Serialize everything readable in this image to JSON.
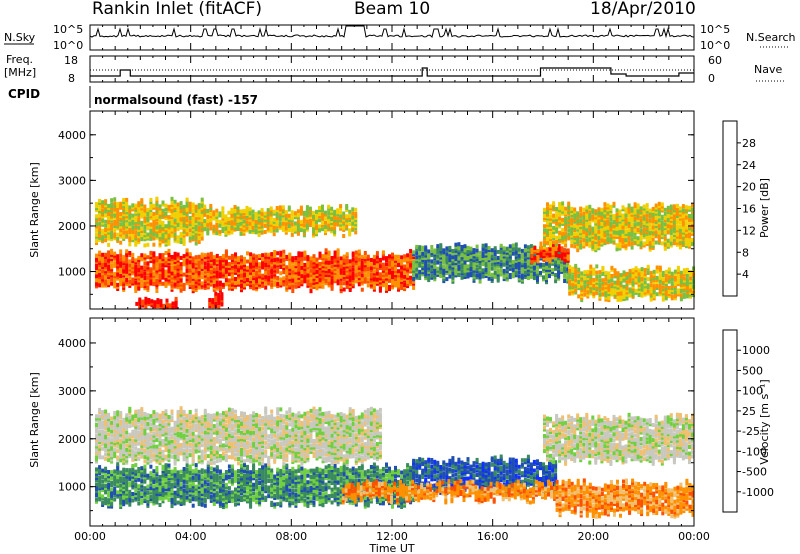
{
  "header": {
    "station": "Rankin Inlet (fitACF)",
    "beam": "Beam 10",
    "date": "18/Apr/2010"
  },
  "top_panels": {
    "nsky_label": "N.Sky",
    "nsearch_label": "N.Search",
    "nsky_ticks": [
      "10^5",
      "10^0"
    ],
    "nsearch_ticks": [
      "10^5",
      "10^0"
    ],
    "freq_label": "Freq.",
    "freq_unit": "[MHz]",
    "freq_ticks": [
      "18",
      "8"
    ],
    "nave_label": "Nave",
    "nave_ticks": [
      "60",
      "0"
    ],
    "cpid_label": "CPID",
    "cpid_value": "normalsound (fast) -157"
  },
  "colors": {
    "power": [
      "#1030ff",
      "#1f4fb0",
      "#3a8a60",
      "#7ac040",
      "#f0d000",
      "#ff9000",
      "#ff5000",
      "#ff0000"
    ],
    "velocity": [
      "#ff0000",
      "#ff5000",
      "#ff9000",
      "#f0c070",
      "#c8c8c0",
      "#70d040",
      "#3a8a60",
      "#1f4fb0",
      "#1030ff"
    ]
  },
  "chart_data": [
    {
      "type": "heatmap",
      "name": "power",
      "ylabel": "Slant Range [km]",
      "ylim": [
        200,
        4500
      ],
      "yticks": [
        "1000",
        "2000",
        "3000",
        "4000"
      ],
      "xlim": [
        0,
        24
      ],
      "xticks": [
        "00:00",
        "04:00",
        "08:00",
        "12:00",
        "16:00",
        "20:00",
        "00:00"
      ],
      "colorbar_label": "Power [dB]",
      "colorbar_ticks": [
        "4",
        "8",
        "12",
        "16",
        "20",
        "24",
        "28"
      ],
      "clim": [
        0,
        32
      ],
      "bands": [
        {
          "t0": 0.2,
          "t1": 12.8,
          "r0": 700,
          "r1": 1450,
          "v": 26
        },
        {
          "t0": 12.8,
          "t1": 19.0,
          "r0": 900,
          "r1": 1600,
          "v": 9
        },
        {
          "t0": 17.5,
          "t1": 19.0,
          "r0": 1300,
          "r1": 1600,
          "v": 28
        },
        {
          "t0": 19.0,
          "t1": 24.0,
          "r0": 500,
          "r1": 1100,
          "v": 20
        },
        {
          "t0": 0.2,
          "t1": 4.5,
          "r0": 1700,
          "r1": 2600,
          "v": 20
        },
        {
          "t0": 4.5,
          "t1": 10.5,
          "r0": 1900,
          "r1": 2400,
          "v": 16
        },
        {
          "t0": 18.0,
          "t1": 24.0,
          "r0": 1600,
          "r1": 2500,
          "v": 16
        },
        {
          "t0": 1.8,
          "t1": 3.4,
          "r0": 200,
          "r1": 400,
          "v": 30
        },
        {
          "t0": 4.7,
          "t1": 5.2,
          "r0": 200,
          "r1": 500,
          "v": 30
        }
      ]
    },
    {
      "type": "heatmap",
      "name": "velocity",
      "ylabel": "Slant Range [km]",
      "xlabel": "Time UT",
      "ylim": [
        200,
        4500
      ],
      "yticks": [
        "1000",
        "2000",
        "3000",
        "4000"
      ],
      "xlim": [
        0,
        24
      ],
      "xticks": [
        "00:00",
        "04:00",
        "08:00",
        "12:00",
        "16:00",
        "20:00",
        "00:00"
      ],
      "colorbar_label": "Velocity [m s⁻¹]",
      "colorbar_ticks": [
        "1000",
        "500",
        "100",
        "25",
        "-25",
        "-100",
        "-500",
        "-1000"
      ],
      "bands": [
        {
          "t0": 0.2,
          "t1": 12.8,
          "r0": 700,
          "r1": 1450,
          "c": 6
        },
        {
          "t0": 12.8,
          "t1": 18.5,
          "r0": 1000,
          "r1": 1600,
          "c": 7
        },
        {
          "t0": 10.0,
          "t1": 18.5,
          "r0": 800,
          "r1": 1100,
          "c": 2
        },
        {
          "t0": 18.5,
          "t1": 24.0,
          "r0": 500,
          "r1": 1100,
          "c": 2
        },
        {
          "t0": 0.2,
          "t1": 11.5,
          "r0": 1600,
          "r1": 2600,
          "c": 4
        },
        {
          "t0": 18.0,
          "t1": 24.0,
          "r0": 1600,
          "r1": 2500,
          "c": 4
        }
      ]
    }
  ]
}
